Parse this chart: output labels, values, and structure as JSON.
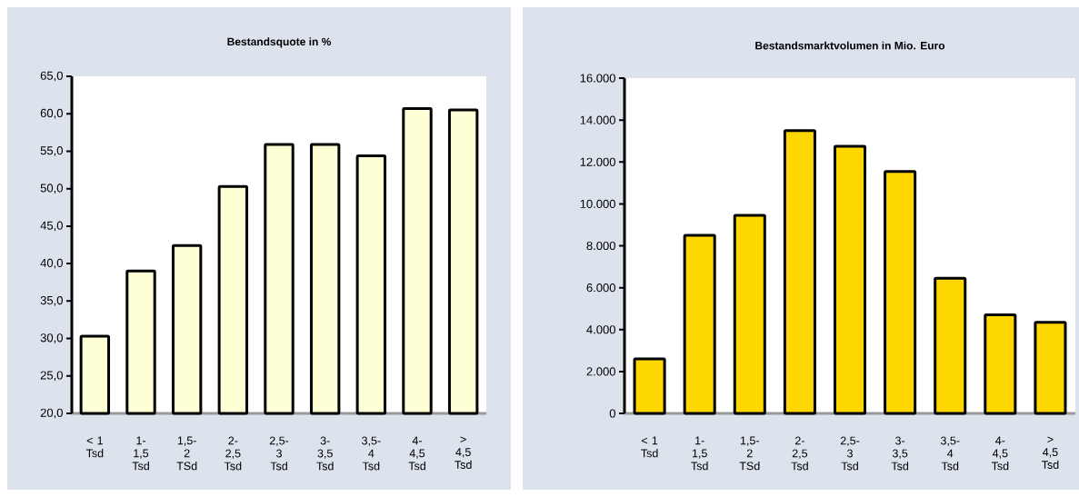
{
  "chart_data": [
    {
      "type": "bar",
      "title": "Bestandsquote in %",
      "categories": [
        "< 1 Tsd",
        "1-1,5 Tsd",
        "1,5-2 TSd",
        "2-2,5 Tsd",
        "2,5-3 Tsd",
        "3-3,5 Tsd",
        "3,5-4 Tsd",
        "4-4,5 Tsd",
        "> 4,5 Tsd"
      ],
      "values": [
        30.3,
        39.0,
        42.4,
        50.3,
        55.9,
        55.9,
        54.4,
        60.7,
        60.5
      ],
      "color": "#ffffd5",
      "ylim": [
        20,
        65
      ],
      "yticks": [
        {
          "value": 20,
          "label": "20,0"
        },
        {
          "value": 25,
          "label": "25,0"
        },
        {
          "value": 30,
          "label": "30,0"
        },
        {
          "value": 35,
          "label": "35,0"
        },
        {
          "value": 40,
          "label": "40,0"
        },
        {
          "value": 45,
          "label": "45,0"
        },
        {
          "value": 50,
          "label": "50,0"
        },
        {
          "value": 55,
          "label": "55,0"
        },
        {
          "value": 60,
          "label": "60,0"
        },
        {
          "value": 65,
          "label": "65,0"
        }
      ]
    },
    {
      "type": "bar",
      "title": "Bestandsmarktvolumen in Mio. Euro",
      "categories": [
        "< 1 Tsd",
        "1-1,5 Tsd",
        "1,5-2 TSd",
        "2-2,5 Tsd",
        "2,5-3 Tsd",
        "3-3,5 Tsd",
        "3,5-4 Tsd",
        "4-4,5 Tsd",
        "> 4,5 Tsd"
      ],
      "values": [
        2600,
        8500,
        9450,
        13500,
        12750,
        11550,
        6450,
        4700,
        4350
      ],
      "color": "#ffd700",
      "ylim": [
        0,
        16000
      ],
      "yticks": [
        0,
        {
          "value": 2000,
          "label": "2.000"
        },
        {
          "value": 4000,
          "label": "4.000"
        },
        {
          "value": 6000,
          "label": "6.000"
        },
        {
          "value": 8000,
          "label": "8.000"
        },
        {
          "value": 10000,
          "label": "10.000"
        },
        {
          "value": 12000,
          "label": "12.000"
        },
        {
          "value": 14000,
          "label": "14.000"
        },
        {
          "value": 16000,
          "label": "16.000"
        }
      ]
    }
  ]
}
